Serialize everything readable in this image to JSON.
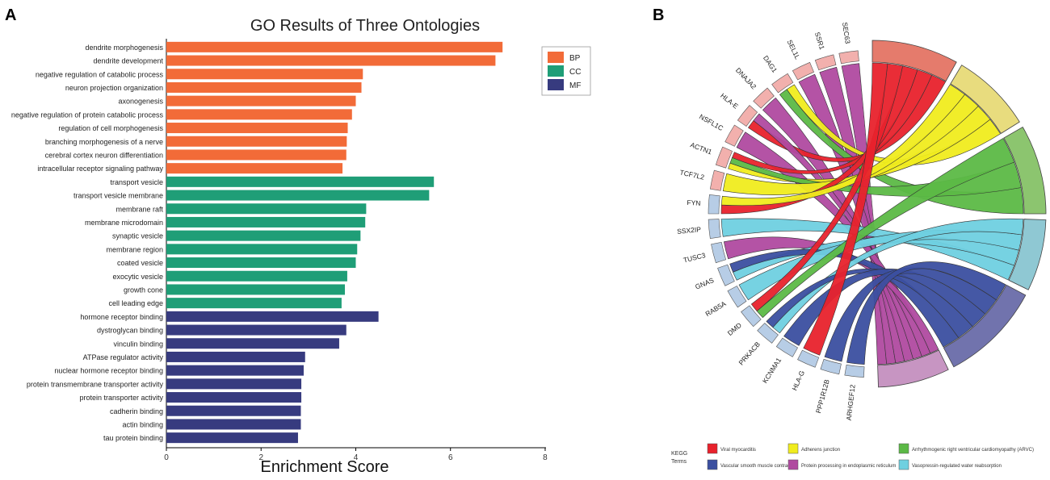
{
  "panel_a_label": "A",
  "panel_b_label": "B",
  "chart_data": [
    {
      "type": "bar",
      "orientation": "horizontal",
      "title": "GO Results of Three Ontologies",
      "xlabel": "Enrichment Score",
      "ylabel": "",
      "xlim": [
        0,
        8.7
      ],
      "xticks": [
        0,
        2,
        4,
        6,
        8
      ],
      "legend": {
        "placement": "top-right",
        "entries": [
          {
            "name": "BP",
            "color": "#f26b38"
          },
          {
            "name": "CC",
            "color": "#1f9e77"
          },
          {
            "name": "MF",
            "color": "#373b7f"
          }
        ]
      },
      "categories": [
        "dendrite morphogenesis",
        "dendrite development",
        "negative regulation of catabolic process",
        "neuron projection organization",
        "axonogenesis",
        "negative regulation of protein catabolic process",
        "regulation of cell morphogenesis",
        "branching morphogenesis of a nerve",
        "cerebral cortex neuron differentiation",
        "intracellular receptor signaling pathway",
        "transport vesicle",
        "transport vesicle membrane",
        "membrane raft",
        "membrane microdomain",
        "synaptic vesicle",
        "membrane region",
        "coated vesicle",
        "exocytic vesicle",
        "growth cone",
        "cell leading edge",
        "hormone receptor binding",
        "dystroglycan binding",
        "vinculin binding",
        "ATPase regulator activity",
        "nuclear hormone receptor binding",
        "protein transmembrane transporter activity",
        "protein transporter activity",
        "cadherin binding",
        "actin binding",
        "tau protein binding"
      ],
      "groups": [
        "BP",
        "BP",
        "BP",
        "BP",
        "BP",
        "BP",
        "BP",
        "BP",
        "BP",
        "BP",
        "CC",
        "CC",
        "CC",
        "CC",
        "CC",
        "CC",
        "CC",
        "CC",
        "CC",
        "CC",
        "MF",
        "MF",
        "MF",
        "MF",
        "MF",
        "MF",
        "MF",
        "MF",
        "MF",
        "MF"
      ],
      "values": [
        7.1,
        6.95,
        4.15,
        4.12,
        4.0,
        3.92,
        3.83,
        3.81,
        3.8,
        3.72,
        5.65,
        5.55,
        4.22,
        4.2,
        4.1,
        4.03,
        4.0,
        3.82,
        3.77,
        3.7,
        4.48,
        3.8,
        3.65,
        2.93,
        2.9,
        2.85,
        2.85,
        2.84,
        2.84,
        2.78
      ]
    },
    {
      "type": "chord",
      "title": "",
      "genes": [
        "SEC63",
        "SSR1",
        "SEL1L",
        "DAG1",
        "DNAJA2",
        "HLA-E",
        "NSFL1C",
        "ACTN1",
        "TCF7L2",
        "FYN",
        "SSX2IP",
        "TUSC3",
        "GNAS",
        "RAB5A",
        "DMD",
        "PRKACB",
        "KCNMA1",
        "HLA-G",
        "PPP1R12B",
        "ARHGEF12"
      ],
      "legend_title": "KEGG\nTerms",
      "legend_title_lines": [
        "KEGG",
        "Terms"
      ],
      "terms": [
        {
          "name": "Viral myocarditis",
          "color": "#e8222c"
        },
        {
          "name": "Adherens junction",
          "color": "#f0ec1e"
        },
        {
          "name": "Arrhythmogenic right ventricular cardiomyopathy (ARVC)",
          "color": "#5cb946"
        },
        {
          "name": "Vascular smooth muscle contraction",
          "color": "#3b4fa0"
        },
        {
          "name": "Protein processing in endoplasmic reticulum",
          "color": "#b04aa0"
        },
        {
          "name": "Vasopressin-regulated water reabsorption",
          "color": "#6fd0e0"
        }
      ]
    }
  ]
}
